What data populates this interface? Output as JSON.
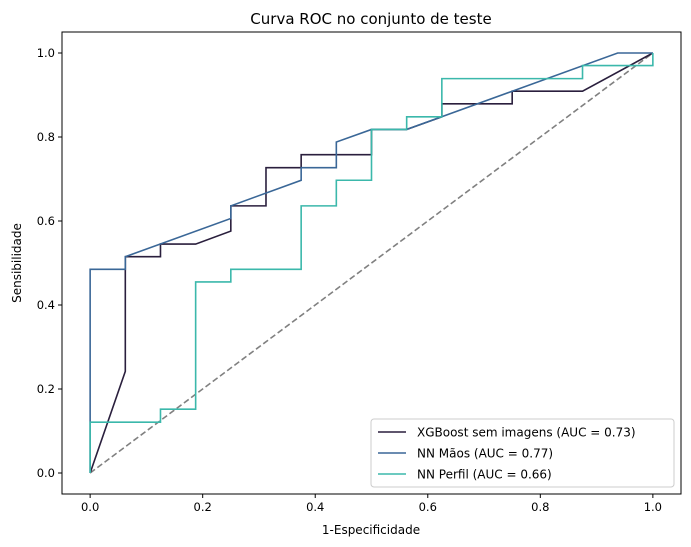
{
  "chart_data": {
    "type": "line",
    "title": "Curva ROC no conjunto de teste",
    "xlabel": "1-Especificidade",
    "ylabel": "Sensibilidade",
    "xlim": [
      -0.05,
      1.05
    ],
    "ylim": [
      -0.05,
      1.05
    ],
    "xticks": [
      0.0,
      0.2,
      0.4,
      0.6,
      0.8,
      1.0
    ],
    "yticks": [
      0.0,
      0.2,
      0.4,
      0.6,
      0.8,
      1.0
    ],
    "tick_labels_x": [
      "0.0",
      "0.2",
      "0.4",
      "0.6",
      "0.8",
      "1.0"
    ],
    "tick_labels_y": [
      "0.0",
      "0.2",
      "0.4",
      "0.6",
      "0.8",
      "1.0"
    ],
    "grid": false,
    "legend_position": "lower-right",
    "series": [
      {
        "name": "XGBoost sem imagens (AUC = 0.73)",
        "color": "#2a1f3d",
        "style": "solid",
        "x": [
          0.0,
          0.0625,
          0.0625,
          0.125,
          0.125,
          0.1875,
          0.25,
          0.25,
          0.3125,
          0.3125,
          0.375,
          0.375,
          0.5,
          0.5,
          0.5625,
          0.625,
          0.625,
          0.75,
          0.75,
          0.875,
          1.0
        ],
        "y": [
          0.0,
          0.242,
          0.515,
          0.515,
          0.545,
          0.545,
          0.576,
          0.636,
          0.636,
          0.727,
          0.727,
          0.758,
          0.758,
          0.818,
          0.818,
          0.848,
          0.879,
          0.879,
          0.909,
          0.909,
          1.0
        ]
      },
      {
        "name": "NN Mãos (AUC = 0.77)",
        "color": "#3a6797",
        "style": "solid",
        "x": [
          0.0,
          0.0,
          0.0625,
          0.0625,
          0.25,
          0.25,
          0.375,
          0.375,
          0.4375,
          0.4375,
          0.5,
          0.5625,
          0.75,
          0.9375,
          1.0
        ],
        "y": [
          0.0,
          0.485,
          0.485,
          0.515,
          0.606,
          0.636,
          0.697,
          0.727,
          0.727,
          0.788,
          0.818,
          0.818,
          0.909,
          1.0,
          1.0
        ]
      },
      {
        "name": "NN Perfil (AUC = 0.66)",
        "color": "#3bb8ab",
        "style": "solid",
        "x": [
          0.0,
          0.0,
          0.125,
          0.125,
          0.1875,
          0.1875,
          0.25,
          0.25,
          0.375,
          0.375,
          0.4375,
          0.4375,
          0.5,
          0.5,
          0.5625,
          0.5625,
          0.625,
          0.625,
          0.875,
          0.875,
          1.0,
          1.0
        ],
        "y": [
          0.0,
          0.121,
          0.121,
          0.152,
          0.152,
          0.455,
          0.455,
          0.485,
          0.485,
          0.636,
          0.636,
          0.697,
          0.697,
          0.818,
          0.818,
          0.848,
          0.848,
          0.939,
          0.939,
          0.97,
          0.97,
          1.0
        ]
      },
      {
        "name": "",
        "color": "#808080",
        "style": "dashed",
        "x": [
          0.0,
          1.0
        ],
        "y": [
          0.0,
          1.0
        ]
      }
    ]
  }
}
